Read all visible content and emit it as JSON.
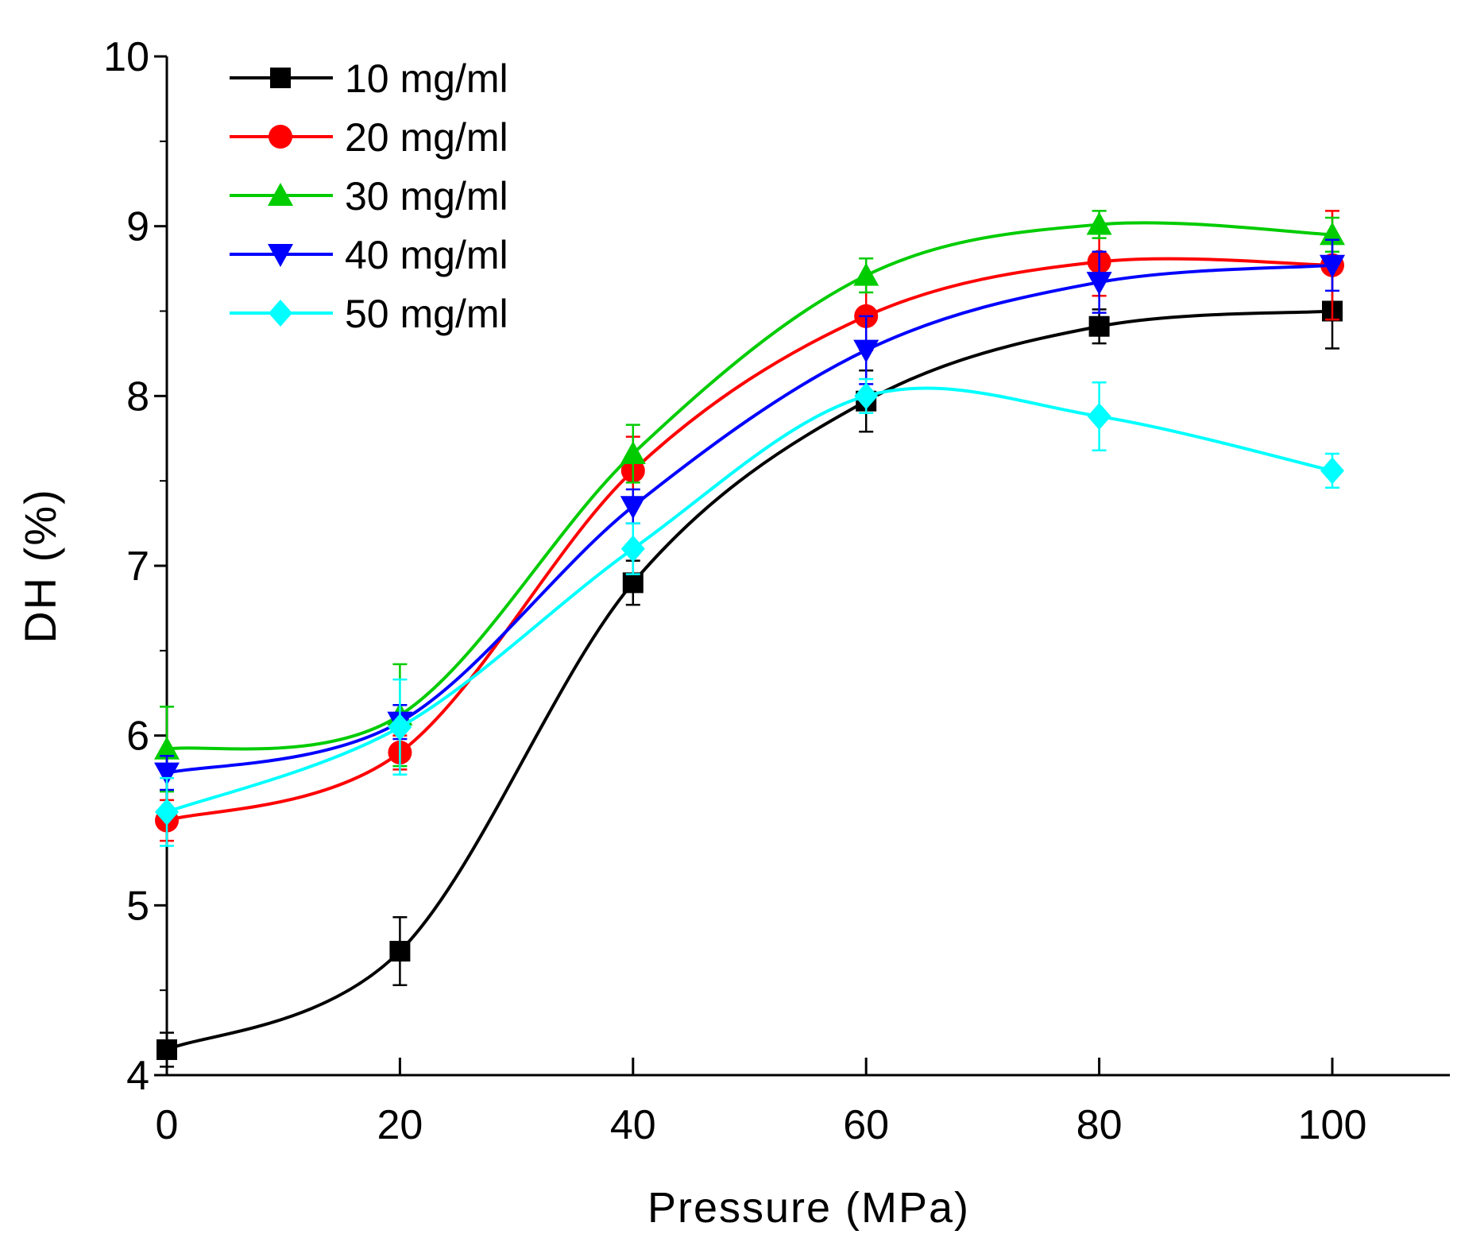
{
  "chart_data": {
    "type": "line",
    "title": "",
    "xlabel": "Pressure (MPa)",
    "ylabel": "DH (%)",
    "xlim": [
      0,
      110
    ],
    "ylim": [
      4,
      10
    ],
    "xticks": [
      0,
      20,
      40,
      60,
      80,
      100
    ],
    "yticks": [
      4,
      5,
      6,
      7,
      8,
      9,
      10
    ],
    "grid": false,
    "legend_position": "top-left",
    "x": [
      0,
      20,
      40,
      60,
      80,
      100
    ],
    "series": [
      {
        "name": "10 mg/ml",
        "color": "#000000",
        "marker": "square",
        "values": [
          4.15,
          4.73,
          6.9,
          7.97,
          8.41,
          8.5
        ],
        "errors": [
          0.1,
          0.2,
          0.13,
          0.18,
          0.1,
          0.22
        ]
      },
      {
        "name": "20 mg/ml",
        "color": "#ff0000",
        "marker": "circle",
        "values": [
          5.5,
          5.9,
          7.56,
          8.47,
          8.79,
          8.77
        ],
        "errors": [
          0.12,
          0.1,
          0.2,
          0.2,
          0.2,
          0.32
        ]
      },
      {
        "name": "30 mg/ml",
        "color": "#00cc00",
        "marker": "triangle-up",
        "values": [
          5.92,
          6.12,
          7.66,
          8.71,
          9.01,
          8.95
        ],
        "errors": [
          0.25,
          0.3,
          0.17,
          0.1,
          0.08,
          0.1
        ]
      },
      {
        "name": "40 mg/ml",
        "color": "#0000ff",
        "marker": "triangle-down",
        "values": [
          5.78,
          6.08,
          7.35,
          8.27,
          8.67,
          8.77
        ],
        "errors": [
          0.1,
          0.1,
          0.1,
          0.2,
          0.18,
          0.15
        ]
      },
      {
        "name": "50 mg/ml",
        "color": "#00ffff",
        "marker": "diamond",
        "values": [
          5.55,
          6.05,
          7.1,
          8.0,
          7.88,
          7.56
        ],
        "errors": [
          0.2,
          0.28,
          0.15,
          0.1,
          0.2,
          0.1
        ]
      }
    ]
  }
}
